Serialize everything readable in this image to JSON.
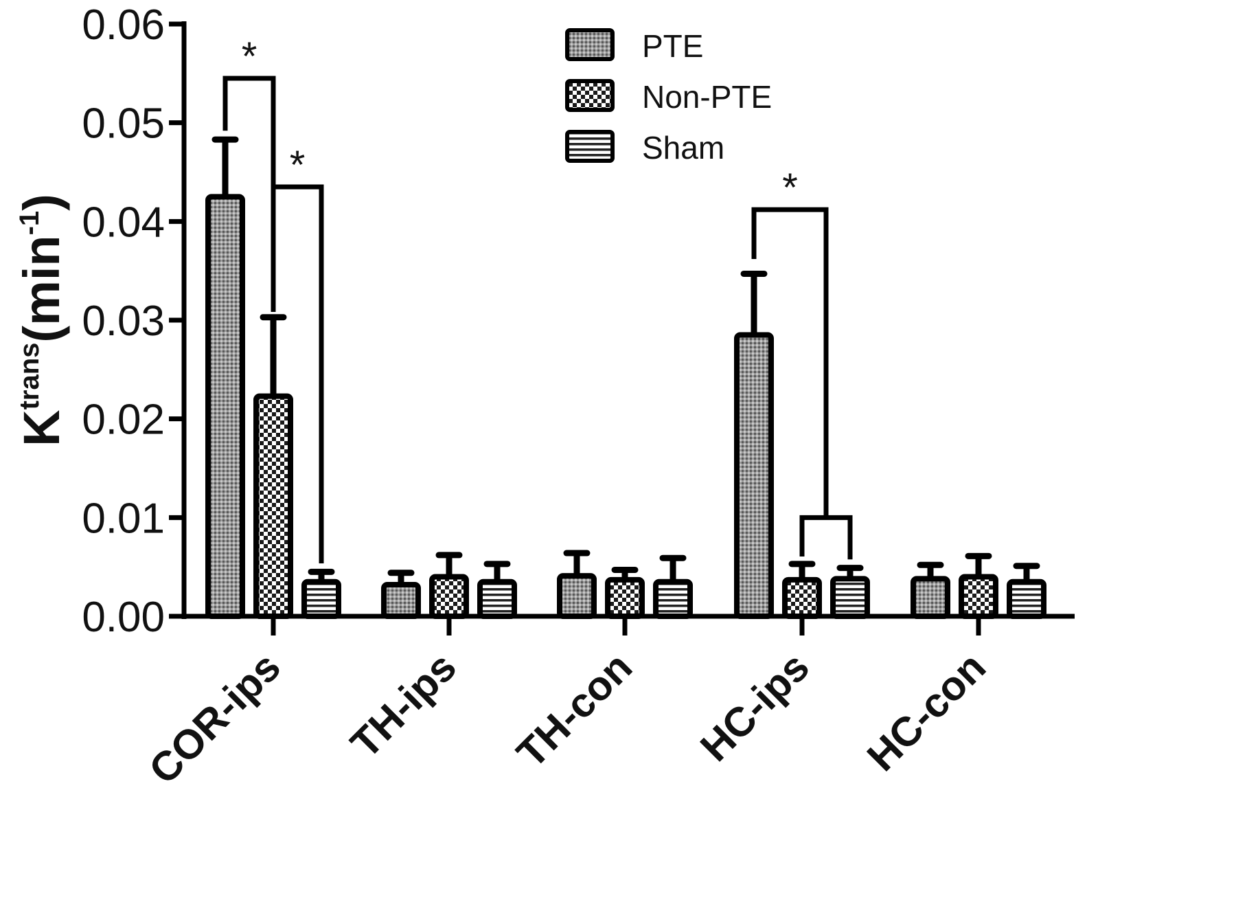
{
  "chart_data": {
    "type": "bar",
    "categories": [
      "COR-ips",
      "TH-ips",
      "TH-con",
      "HC-ips",
      "HC-con"
    ],
    "series": [
      {
        "name": "PTE",
        "pattern": "fine-stipple",
        "values": [
          0.0425,
          0.0032,
          0.0041,
          0.0285,
          0.0038
        ],
        "errors": [
          0.0058,
          0.0012,
          0.0023,
          0.0062,
          0.0014
        ]
      },
      {
        "name": "Non-PTE",
        "pattern": "checker",
        "values": [
          0.0223,
          0.004,
          0.0037,
          0.0037,
          0.004
        ],
        "errors": [
          0.008,
          0.0022,
          0.001,
          0.0016,
          0.0021
        ]
      },
      {
        "name": "Sham",
        "pattern": "horizontal-lines",
        "values": [
          0.0035,
          0.0035,
          0.0035,
          0.0038,
          0.0035
        ],
        "errors": [
          0.001,
          0.0018,
          0.0024,
          0.0011,
          0.0016
        ]
      }
    ],
    "ylabel": {
      "main": "K",
      "sup": "trans",
      "unit": "(min",
      "unit_sup": "-1",
      "close": ")"
    },
    "xlabel": "",
    "ylim": [
      0,
      0.06
    ],
    "yticks": [
      "0.00",
      "0.01",
      "0.02",
      "0.03",
      "0.04",
      "0.05",
      "0.06"
    ],
    "grid": false,
    "legend_position": "top-center",
    "significance": [
      {
        "category": "COR-ips",
        "from_series": "PTE",
        "to_series": "Non-PTE",
        "label": "*",
        "bracket_level": 0.0545
      },
      {
        "category": "COR-ips",
        "from_series": "Non-PTE",
        "to_series": "Sham",
        "label": "*",
        "bracket_level": 0.0435
      },
      {
        "category": "HC-ips",
        "from_series": "PTE",
        "to_series": "Non-PTE+Sham",
        "label": "*",
        "bracket_level": 0.0412
      }
    ],
    "colors": {
      "bar_edge": "#000000",
      "bar_fill_base": "#ffffff",
      "pattern_ink": "#222222"
    }
  }
}
